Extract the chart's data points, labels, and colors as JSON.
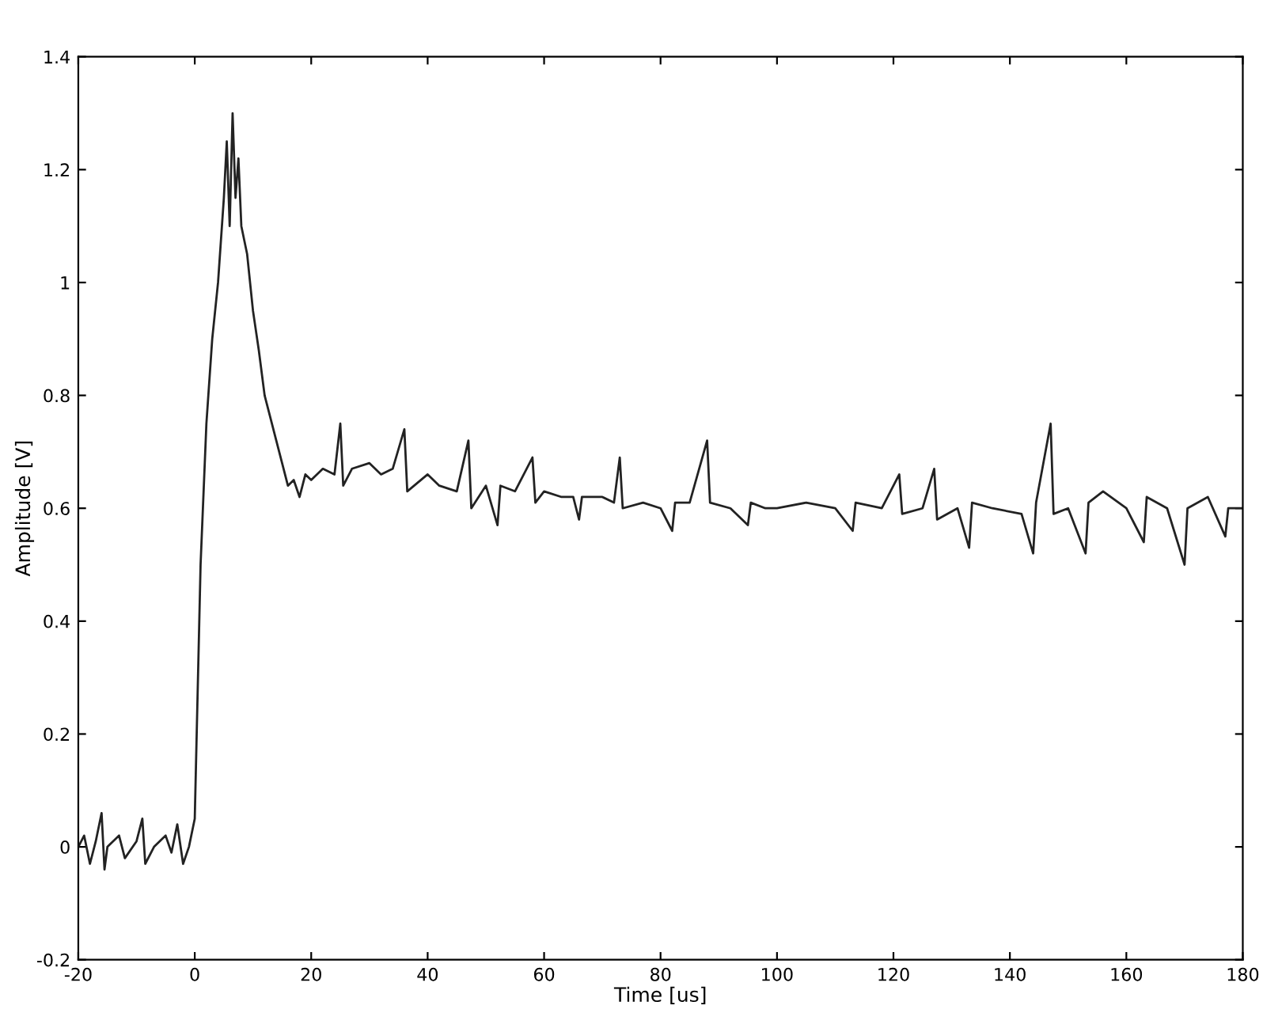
{
  "chart_data": {
    "type": "line",
    "xlabel": "Time [us]",
    "ylabel": "Amplitude [V]",
    "xlim": [
      -20,
      180
    ],
    "xticks": [
      -20,
      0,
      20,
      40,
      60,
      80,
      100,
      120,
      140,
      160,
      180
    ],
    "ylim": [
      -0.2,
      1.4
    ],
    "yticks": [
      {
        "value": -0.2,
        "label": "-0.2"
      },
      0,
      0.2,
      0.4,
      0.6,
      0.8,
      1,
      1.2,
      1.4
    ],
    "grid": false,
    "legend": false,
    "marker": "none",
    "line_style": "solid",
    "series": [
      {
        "color": "#222222",
        "x": [
          -20,
          -19,
          -18,
          -17,
          -16,
          -15.5,
          -15,
          -13,
          -12,
          -10,
          -9,
          -8.5,
          -7,
          -5,
          -4,
          -3,
          -2,
          -1,
          0,
          1,
          2,
          3,
          4,
          5,
          5.5,
          6,
          6.5,
          7,
          7.5,
          8,
          9,
          10,
          11,
          12,
          13,
          14,
          15,
          16,
          17,
          18,
          19,
          20,
          22,
          24,
          25,
          25.5,
          27,
          30,
          32,
          34,
          36,
          36.5,
          40,
          42,
          45,
          47,
          47.5,
          50,
          52,
          52.5,
          55,
          58,
          58.5,
          60,
          63,
          65,
          66,
          66.5,
          70,
          72,
          73,
          73.5,
          77,
          80,
          82,
          82.5,
          85,
          88,
          88.5,
          92,
          95,
          95.5,
          98,
          100,
          105,
          110,
          113,
          113.5,
          118,
          121,
          121.5,
          125,
          127,
          127.5,
          131,
          133,
          133.5,
          137,
          142,
          144,
          144.5,
          147,
          147.5,
          150,
          153,
          153.5,
          156,
          160,
          163,
          163.5,
          167,
          170,
          170.5,
          174,
          177,
          177.5,
          180
        ],
        "values": [
          0.0,
          0.02,
          -0.03,
          0.01,
          0.06,
          -0.04,
          0.0,
          0.02,
          -0.02,
          0.01,
          0.05,
          -0.03,
          0.0,
          0.02,
          -0.01,
          0.04,
          -0.03,
          0.0,
          0.05,
          0.5,
          0.75,
          0.9,
          1.0,
          1.15,
          1.25,
          1.1,
          1.3,
          1.15,
          1.22,
          1.1,
          1.05,
          0.95,
          0.88,
          0.8,
          0.76,
          0.72,
          0.68,
          0.64,
          0.65,
          0.62,
          0.66,
          0.65,
          0.67,
          0.66,
          0.75,
          0.64,
          0.67,
          0.68,
          0.66,
          0.67,
          0.74,
          0.63,
          0.66,
          0.64,
          0.63,
          0.72,
          0.6,
          0.64,
          0.57,
          0.64,
          0.63,
          0.69,
          0.61,
          0.63,
          0.62,
          0.62,
          0.58,
          0.62,
          0.62,
          0.61,
          0.69,
          0.6,
          0.61,
          0.6,
          0.56,
          0.61,
          0.61,
          0.72,
          0.61,
          0.6,
          0.57,
          0.61,
          0.6,
          0.6,
          0.61,
          0.6,
          0.56,
          0.61,
          0.6,
          0.66,
          0.59,
          0.6,
          0.67,
          0.58,
          0.6,
          0.53,
          0.61,
          0.6,
          0.59,
          0.52,
          0.61,
          0.75,
          0.59,
          0.6,
          0.52,
          0.61,
          0.63,
          0.6,
          0.54,
          0.62,
          0.6,
          0.5,
          0.6,
          0.62,
          0.55,
          0.6,
          0.6
        ]
      }
    ]
  }
}
